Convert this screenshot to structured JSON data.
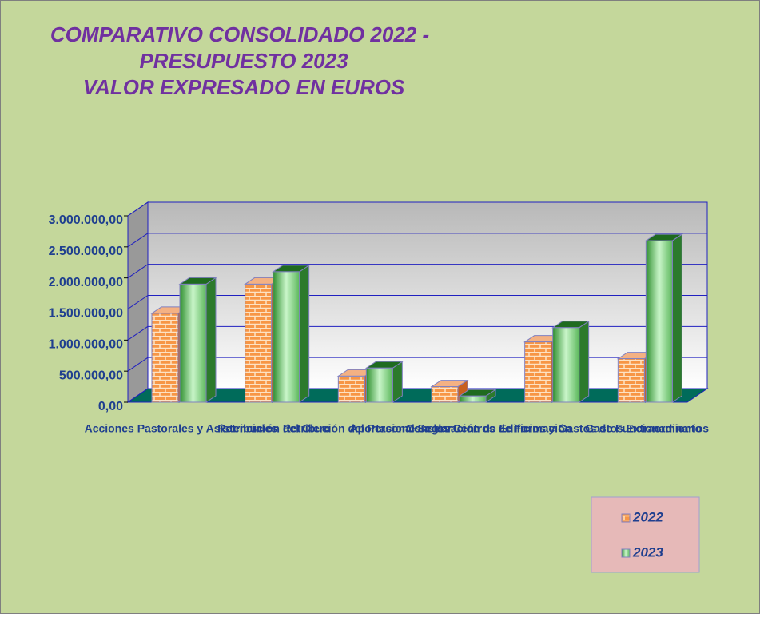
{
  "chart_data": {
    "type": "bar3d",
    "title": [
      "COMPARATIVO CONSOLIDADO 2022 -",
      "PRESUPUESTO 2023",
      "VALOR EXPRESADO EN EUROS"
    ],
    "categories": [
      "Acciones Pastorales y Asistenciales",
      "Retribución del Clero",
      "Retribución del Personal Seglar",
      "Aportaciones a los Centros de Formación",
      "Conservación de Edificios y Gastos de Funcionamiento",
      "Gastos Extraordinarios"
    ],
    "series": [
      {
        "name": "2022",
        "color": "#f79646",
        "values": [
          1430000,
          1900000,
          420000,
          250000,
          970000,
          700000
        ]
      },
      {
        "name": "2023",
        "color": "#3c9a3c",
        "values": [
          1900000,
          2100000,
          550000,
          100000,
          1200000,
          2600000
        ]
      }
    ],
    "ylim": [
      0,
      3000000
    ],
    "yticks": [
      {
        "value": 0,
        "label": "0,00"
      },
      {
        "value": 500000,
        "label": "500.000,00"
      },
      {
        "value": 1000000,
        "label": "1.000.000,00"
      },
      {
        "value": 1500000,
        "label": "1.500.000,00"
      },
      {
        "value": 2000000,
        "label": "2.000.000,00"
      },
      {
        "value": 2500000,
        "label": "2.500.000,00"
      },
      {
        "value": 3000000,
        "label": "3.000.000,00"
      }
    ],
    "grid": true,
    "legend": "bottom-right"
  }
}
